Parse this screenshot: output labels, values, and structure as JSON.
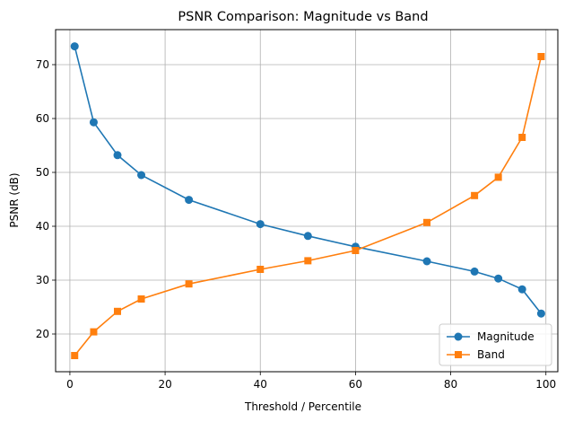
{
  "chart_data": {
    "type": "line",
    "title": "PSNR Comparison: Magnitude vs Band",
    "xlabel": "Threshold / Percentile",
    "ylabel": "PSNR (dB)",
    "xlim": [
      -3,
      102.5
    ],
    "ylim": [
      13,
      76.5
    ],
    "xticks": [
      0,
      20,
      40,
      60,
      80,
      100
    ],
    "yticks": [
      20,
      30,
      40,
      50,
      60,
      70
    ],
    "grid": true,
    "legend_position": "lower-right",
    "series": [
      {
        "name": "Magnitude",
        "color": "#1f77b4",
        "marker": "circle",
        "x": [
          1,
          5,
          10,
          15,
          25,
          40,
          50,
          60,
          75,
          85,
          90,
          95,
          99
        ],
        "y": [
          73.4,
          59.3,
          53.2,
          49.5,
          44.9,
          40.4,
          38.2,
          36.2,
          33.5,
          31.6,
          30.3,
          28.3,
          23.8
        ]
      },
      {
        "name": "Band",
        "color": "#ff7f0e",
        "marker": "square",
        "x": [
          1,
          5,
          10,
          15,
          25,
          40,
          50,
          60,
          75,
          85,
          90,
          95,
          99
        ],
        "y": [
          16.0,
          20.4,
          24.2,
          26.5,
          29.3,
          32.0,
          33.6,
          35.5,
          40.7,
          45.7,
          49.1,
          56.5,
          71.5
        ]
      }
    ]
  }
}
